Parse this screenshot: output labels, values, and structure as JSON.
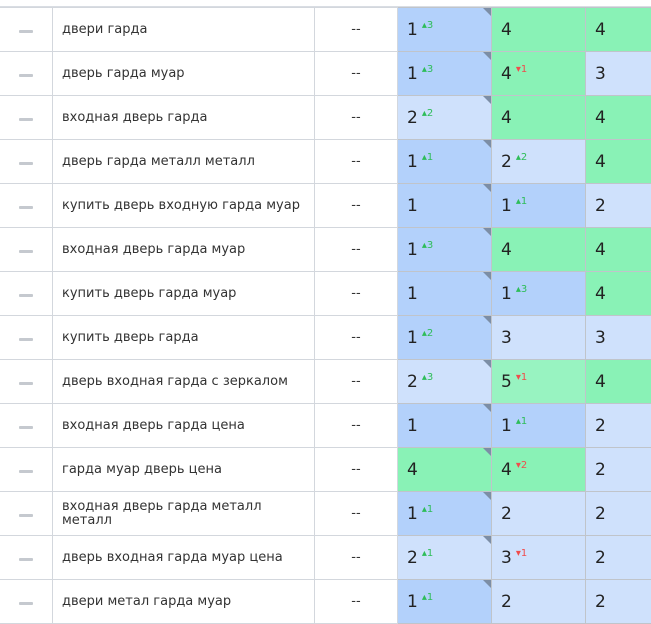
{
  "colors": {
    "dark": "#b3d1fb",
    "light": "#cfe1fc",
    "green": "#89f2b6",
    "lgreen": "#98f3c1",
    "up": "#2ebd59",
    "down": "#f04c4c"
  },
  "rows": [
    {
      "keyword": "двери гарда",
      "compare": "--",
      "cells": [
        {
          "v": "1",
          "d": "3",
          "dir": "up",
          "c": "dark"
        },
        {
          "v": "4",
          "c": "green"
        },
        {
          "v": "4",
          "c": "green"
        }
      ]
    },
    {
      "keyword": "дверь гарда муар",
      "compare": "--",
      "cells": [
        {
          "v": "1",
          "d": "3",
          "dir": "up",
          "c": "dark"
        },
        {
          "v": "4",
          "d": "1",
          "dir": "dn",
          "c": "green"
        },
        {
          "v": "3",
          "c": "light"
        }
      ]
    },
    {
      "keyword": "входная дверь гарда",
      "compare": "--",
      "cells": [
        {
          "v": "2",
          "d": "2",
          "dir": "up",
          "c": "light"
        },
        {
          "v": "4",
          "c": "green"
        },
        {
          "v": "4",
          "c": "green"
        }
      ]
    },
    {
      "keyword": "дверь гарда металл металл",
      "compare": "--",
      "cells": [
        {
          "v": "1",
          "d": "1",
          "dir": "up",
          "c": "dark"
        },
        {
          "v": "2",
          "d": "2",
          "dir": "up",
          "c": "light"
        },
        {
          "v": "4",
          "c": "green"
        }
      ]
    },
    {
      "keyword": "купить дверь входную гарда муар",
      "compare": "--",
      "cells": [
        {
          "v": "1",
          "c": "dark"
        },
        {
          "v": "1",
          "d": "1",
          "dir": "up",
          "c": "dark"
        },
        {
          "v": "2",
          "c": "light"
        }
      ]
    },
    {
      "keyword": "входная дверь гарда муар",
      "compare": "--",
      "cells": [
        {
          "v": "1",
          "d": "3",
          "dir": "up",
          "c": "dark"
        },
        {
          "v": "4",
          "c": "green"
        },
        {
          "v": "4",
          "c": "green"
        }
      ]
    },
    {
      "keyword": "купить дверь гарда муар",
      "compare": "--",
      "cells": [
        {
          "v": "1",
          "c": "dark"
        },
        {
          "v": "1",
          "d": "3",
          "dir": "up",
          "c": "dark"
        },
        {
          "v": "4",
          "c": "green"
        }
      ]
    },
    {
      "keyword": "купить дверь гарда",
      "compare": "--",
      "cells": [
        {
          "v": "1",
          "d": "2",
          "dir": "up",
          "c": "dark"
        },
        {
          "v": "3",
          "c": "light"
        },
        {
          "v": "3",
          "c": "light"
        }
      ]
    },
    {
      "keyword": "дверь входная гарда с зеркалом",
      "compare": "--",
      "cells": [
        {
          "v": "2",
          "d": "3",
          "dir": "up",
          "c": "light"
        },
        {
          "v": "5",
          "d": "1",
          "dir": "dn",
          "c": "lgreen"
        },
        {
          "v": "4",
          "c": "green"
        }
      ]
    },
    {
      "keyword": "входная дверь гарда цена",
      "compare": "--",
      "cells": [
        {
          "v": "1",
          "c": "dark"
        },
        {
          "v": "1",
          "d": "1",
          "dir": "up",
          "c": "dark"
        },
        {
          "v": "2",
          "c": "light"
        }
      ]
    },
    {
      "keyword": "гарда муар дверь цена",
      "compare": "--",
      "cells": [
        {
          "v": "4",
          "c": "green"
        },
        {
          "v": "4",
          "d": "2",
          "dir": "dn",
          "c": "green"
        },
        {
          "v": "2",
          "c": "light"
        }
      ]
    },
    {
      "keyword": "входная дверь гарда металл металл",
      "compare": "--",
      "cells": [
        {
          "v": "1",
          "d": "1",
          "dir": "up",
          "c": "dark"
        },
        {
          "v": "2",
          "c": "light"
        },
        {
          "v": "2",
          "c": "light"
        }
      ]
    },
    {
      "keyword": "дверь входная гарда муар цена",
      "compare": "--",
      "cells": [
        {
          "v": "2",
          "d": "1",
          "dir": "up",
          "c": "light"
        },
        {
          "v": "3",
          "d": "1",
          "dir": "dn",
          "c": "light"
        },
        {
          "v": "2",
          "c": "light"
        }
      ]
    },
    {
      "keyword": "двери метал гарда муар",
      "compare": "--",
      "cells": [
        {
          "v": "1",
          "d": "1",
          "dir": "up",
          "c": "dark"
        },
        {
          "v": "2",
          "c": "light"
        },
        {
          "v": "2",
          "c": "light"
        }
      ]
    }
  ]
}
